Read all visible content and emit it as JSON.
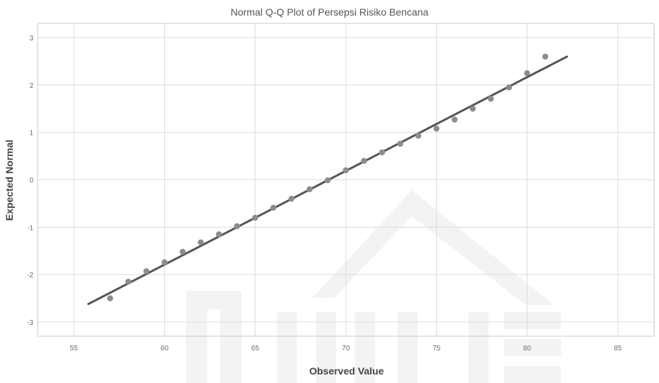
{
  "chart_data": {
    "type": "scatter",
    "title": "Normal Q-Q Plot of Persepsi Risiko Bencana",
    "xlabel": "Observed Value",
    "ylabel": "Expected Normal",
    "xlim": [
      53,
      87
    ],
    "ylim": [
      -3.3,
      3.3
    ],
    "xticks": [
      55,
      60,
      65,
      70,
      75,
      80,
      85
    ],
    "yticks": [
      -3,
      -2,
      -1,
      0,
      1,
      2,
      3
    ],
    "grid": true,
    "points": {
      "x": [
        57,
        58,
        59,
        60,
        61,
        62,
        63,
        64,
        65,
        66,
        67,
        68,
        69,
        70,
        71,
        72,
        73,
        74,
        75,
        76,
        77,
        78,
        79,
        80,
        81
      ],
      "y": [
        -2.5,
        -2.15,
        -1.93,
        -1.74,
        -1.52,
        -1.32,
        -1.15,
        -0.98,
        -0.8,
        -0.59,
        -0.4,
        -0.2,
        -0.01,
        0.2,
        0.4,
        0.58,
        0.76,
        0.93,
        1.08,
        1.27,
        1.5,
        1.71,
        1.95,
        2.25,
        2.6
      ]
    },
    "reference_line": {
      "x": [
        55.8,
        82.2
      ],
      "y": [
        -2.62,
        2.6
      ]
    },
    "colors": {
      "points": "#8c8c8c",
      "line": "#555555",
      "grid": "#dcdcdc"
    }
  }
}
